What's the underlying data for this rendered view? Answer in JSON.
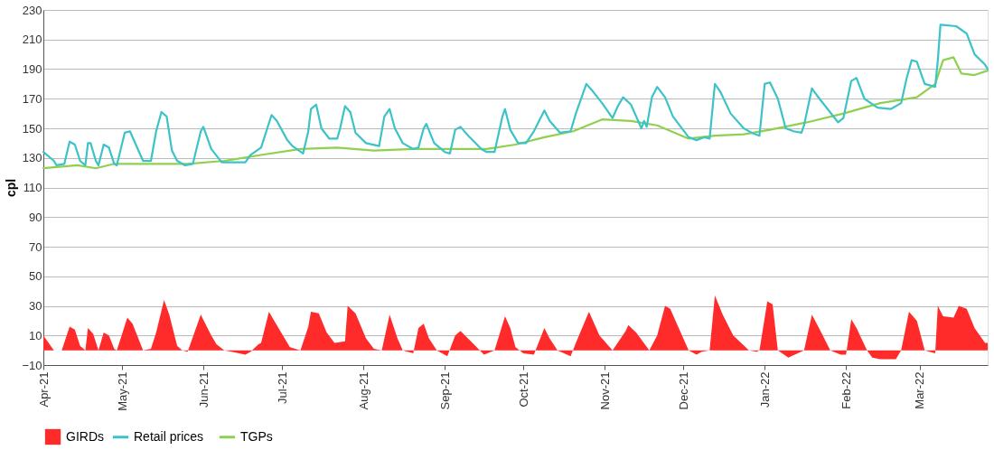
{
  "chart_data": {
    "type": "line",
    "ylabel": "cpl",
    "ylim": [
      -10,
      230
    ],
    "yticks": [
      -10,
      10,
      30,
      50,
      70,
      90,
      110,
      130,
      150,
      170,
      190,
      210,
      230
    ],
    "xlim": [
      "2021-04-01",
      "2022-03-27"
    ],
    "xticks": [
      {
        "value": "2021-04-01",
        "label": "Apr-21"
      },
      {
        "value": "2021-05-01",
        "label": "May-21"
      },
      {
        "value": "2021-06-01",
        "label": "Jun-21"
      },
      {
        "value": "2021-07-01",
        "label": "Jul-21"
      },
      {
        "value": "2021-08-01",
        "label": "Aug-21"
      },
      {
        "value": "2021-09-01",
        "label": "Sep-21"
      },
      {
        "value": "2021-10-01",
        "label": "Oct-21"
      },
      {
        "value": "2021-11-01",
        "label": "Nov-21"
      },
      {
        "value": "2021-12-01",
        "label": "Dec-21"
      },
      {
        "value": "2022-01-01",
        "label": "Jan-22"
      },
      {
        "value": "2022-02-01",
        "label": "Feb-22"
      },
      {
        "value": "2022-03-01",
        "label": "Mar-22"
      }
    ],
    "grid": "y",
    "legend": "bottom",
    "series": [
      {
        "name": "GIRDs",
        "type": "area",
        "color": "#ff2a2a",
        "x": [
          "2021-04-01",
          "2021-04-05",
          "2021-04-08",
          "2021-04-11",
          "2021-04-13",
          "2021-04-15",
          "2021-04-17",
          "2021-04-18",
          "2021-04-20",
          "2021-04-22",
          "2021-04-24",
          "2021-04-26",
          "2021-04-28",
          "2021-04-29",
          "2021-05-03",
          "2021-05-05",
          "2021-05-09",
          "2021-05-12",
          "2021-05-14",
          "2021-05-17",
          "2021-05-19",
          "2021-05-22",
          "2021-05-24",
          "2021-05-26",
          "2021-05-31",
          "2021-06-04",
          "2021-06-06",
          "2021-06-09",
          "2021-06-17",
          "2021-06-19",
          "2021-06-22",
          "2021-06-23",
          "2021-06-26",
          "2021-06-28",
          "2021-07-04",
          "2021-07-08",
          "2021-07-11",
          "2021-07-12",
          "2021-07-15",
          "2021-07-18",
          "2021-07-21",
          "2021-07-25",
          "2021-07-26",
          "2021-07-29",
          "2021-08-02",
          "2021-08-05",
          "2021-08-08",
          "2021-08-11",
          "2021-08-14",
          "2021-08-16",
          "2021-08-20",
          "2021-08-22",
          "2021-08-24",
          "2021-08-26",
          "2021-08-29",
          "2021-09-02",
          "2021-09-05",
          "2021-09-07",
          "2021-09-11",
          "2021-09-16",
          "2021-09-20",
          "2021-09-24",
          "2021-09-26",
          "2021-09-28",
          "2021-10-01",
          "2021-10-05",
          "2021-10-09",
          "2021-10-11",
          "2021-10-14",
          "2021-10-19",
          "2021-10-21",
          "2021-10-26",
          "2021-10-30",
          "2021-11-04",
          "2021-11-09",
          "2021-11-10",
          "2021-11-13",
          "2021-11-18",
          "2021-11-21",
          "2021-11-24",
          "2021-11-26",
          "2021-11-28",
          "2021-12-03",
          "2021-12-06",
          "2021-12-08",
          "2021-12-11",
          "2021-12-13",
          "2021-12-16",
          "2021-12-20",
          "2021-12-26",
          "2021-12-29",
          "2021-12-30",
          "2022-01-02",
          "2022-01-04",
          "2022-01-06",
          "2022-01-10",
          "2022-01-16",
          "2022-01-19",
          "2022-01-22",
          "2022-01-26",
          "2022-01-30",
          "2022-02-01",
          "2022-02-03",
          "2022-02-05",
          "2022-02-09",
          "2022-02-11",
          "2022-02-14",
          "2022-02-20",
          "2022-02-22",
          "2022-02-25",
          "2022-02-28",
          "2022-03-03",
          "2022-03-07",
          "2022-03-08",
          "2022-03-10",
          "2022-03-14",
          "2022-03-16",
          "2022-03-19",
          "2022-03-22",
          "2022-03-26",
          "2022-03-27"
        ],
        "values": [
          10,
          0,
          0,
          16,
          14,
          3,
          0,
          15,
          11,
          0,
          12,
          10,
          1,
          0,
          22,
          18,
          0,
          1,
          12,
          34,
          24,
          3,
          0,
          -1,
          24,
          10,
          4,
          0,
          -3,
          -1,
          4,
          5,
          26,
          20,
          2,
          0,
          16,
          26,
          25,
          12,
          5,
          6,
          30,
          25,
          8,
          1,
          0,
          24,
          8,
          0,
          -2,
          15,
          18,
          8,
          0,
          -4,
          10,
          13,
          6,
          -3,
          0,
          23,
          15,
          2,
          -2,
          -3,
          15,
          8,
          0,
          -4,
          5,
          26,
          10,
          0,
          13,
          17,
          12,
          0,
          10,
          30,
          28,
          20,
          0,
          -3,
          -1,
          0,
          37,
          24,
          10,
          0,
          -1,
          0,
          33,
          31,
          0,
          -5,
          0,
          24,
          14,
          0,
          -3,
          -3,
          21,
          15,
          0,
          -5,
          -6,
          -6,
          0,
          26,
          20,
          0,
          -2,
          30,
          23,
          22,
          30,
          28,
          15,
          5,
          5
        ]
      },
      {
        "name": "TGPs",
        "color": "#8fd14f",
        "x": [
          "2021-04-01",
          "2021-04-14",
          "2021-04-21",
          "2021-04-28",
          "2021-05-12",
          "2021-05-26",
          "2021-06-09",
          "2021-06-23",
          "2021-07-08",
          "2021-07-22",
          "2021-08-05",
          "2021-08-20",
          "2021-09-03",
          "2021-09-17",
          "2021-09-28",
          "2021-10-09",
          "2021-10-20",
          "2021-10-31",
          "2021-11-11",
          "2021-11-21",
          "2021-12-03",
          "2021-12-13",
          "2021-12-24",
          "2022-01-03",
          "2022-01-17",
          "2022-01-31",
          "2022-02-14",
          "2022-02-28",
          "2022-03-07",
          "2022-03-10",
          "2022-03-14",
          "2022-03-17",
          "2022-03-22",
          "2022-03-27"
        ],
        "values": [
          123,
          125,
          123,
          126,
          126,
          126,
          128,
          132,
          136,
          137,
          135,
          136,
          136,
          136,
          139,
          144,
          148,
          156,
          155,
          152,
          143,
          145,
          146,
          149,
          154,
          160,
          167,
          171,
          180,
          196,
          198,
          187,
          186,
          189
        ]
      },
      {
        "name": "Retail prices",
        "color": "#3cc3c8",
        "x": [
          "2021-04-01",
          "2021-04-05",
          "2021-04-06",
          "2021-04-09",
          "2021-04-11",
          "2021-04-13",
          "2021-04-15",
          "2021-04-17",
          "2021-04-18",
          "2021-04-19",
          "2021-04-21",
          "2021-04-22",
          "2021-04-24",
          "2021-04-26",
          "2021-04-28",
          "2021-04-29",
          "2021-05-02",
          "2021-05-04",
          "2021-05-09",
          "2021-05-12",
          "2021-05-14",
          "2021-05-16",
          "2021-05-18",
          "2021-05-20",
          "2021-05-22",
          "2021-05-25",
          "2021-05-28",
          "2021-05-31",
          "2021-06-01",
          "2021-06-04",
          "2021-06-08",
          "2021-06-12",
          "2021-06-17",
          "2021-06-19",
          "2021-06-23",
          "2021-06-27",
          "2021-06-29",
          "2021-07-03",
          "2021-07-05",
          "2021-07-09",
          "2021-07-11",
          "2021-07-12",
          "2021-07-14",
          "2021-07-16",
          "2021-07-19",
          "2021-07-22",
          "2021-07-23",
          "2021-07-25",
          "2021-07-27",
          "2021-07-29",
          "2021-08-02",
          "2021-08-07",
          "2021-08-09",
          "2021-08-11",
          "2021-08-13",
          "2021-08-16",
          "2021-08-20",
          "2021-08-22",
          "2021-08-24",
          "2021-08-25",
          "2021-08-28",
          "2021-09-01",
          "2021-09-03",
          "2021-09-05",
          "2021-09-07",
          "2021-09-10",
          "2021-09-15",
          "2021-09-17",
          "2021-09-20",
          "2021-09-23",
          "2021-09-24",
          "2021-09-26",
          "2021-09-29",
          "2021-10-02",
          "2021-10-05",
          "2021-10-09",
          "2021-10-11",
          "2021-10-15",
          "2021-10-19",
          "2021-10-21",
          "2021-10-25",
          "2021-10-27",
          "2021-10-31",
          "2021-11-04",
          "2021-11-06",
          "2021-11-08",
          "2021-11-11",
          "2021-11-15",
          "2021-11-16",
          "2021-11-17",
          "2021-11-19",
          "2021-11-21",
          "2021-11-24",
          "2021-11-27",
          "2021-12-03",
          "2021-12-06",
          "2021-12-09",
          "2021-12-11",
          "2021-12-13",
          "2021-12-15",
          "2021-12-19",
          "2021-12-24",
          "2021-12-27",
          "2021-12-30",
          "2022-01-01",
          "2022-01-03",
          "2022-01-06",
          "2022-01-09",
          "2022-01-12",
          "2022-01-15",
          "2022-01-16",
          "2022-01-19",
          "2022-01-21",
          "2022-01-25",
          "2022-01-29",
          "2022-01-31",
          "2022-02-03",
          "2022-02-05",
          "2022-02-08",
          "2022-02-13",
          "2022-02-18",
          "2022-02-22",
          "2022-02-24",
          "2022-02-26",
          "2022-02-28",
          "2022-03-03",
          "2022-03-07",
          "2022-03-08",
          "2022-03-09",
          "2022-03-15",
          "2022-03-19",
          "2022-03-22",
          "2022-03-26",
          "2022-03-27"
        ],
        "values": [
          134,
          128,
          125,
          126,
          141,
          139,
          128,
          125,
          140,
          140,
          128,
          125,
          139,
          137,
          126,
          125,
          147,
          148,
          128,
          128,
          148,
          161,
          158,
          135,
          128,
          125,
          126,
          148,
          151,
          136,
          127,
          127,
          127,
          132,
          137,
          159,
          155,
          142,
          138,
          133,
          148,
          163,
          166,
          150,
          143,
          143,
          149,
          165,
          161,
          147,
          140,
          138,
          158,
          163,
          150,
          140,
          136,
          137,
          150,
          153,
          140,
          134,
          133,
          149,
          151,
          145,
          136,
          134,
          134,
          158,
          163,
          149,
          140,
          140,
          148,
          162,
          155,
          147,
          148,
          160,
          180,
          176,
          167,
          157,
          165,
          171,
          166,
          150,
          155,
          151,
          171,
          178,
          171,
          158,
          144,
          142,
          144,
          143,
          180,
          175,
          160,
          150,
          147,
          145,
          180,
          181,
          170,
          150,
          148,
          147,
          152,
          177,
          172,
          163,
          154,
          157,
          182,
          184,
          170,
          164,
          163,
          167,
          183,
          196,
          195,
          180,
          178,
          196,
          220,
          219,
          214,
          200,
          193,
          190
        ]
      }
    ]
  }
}
